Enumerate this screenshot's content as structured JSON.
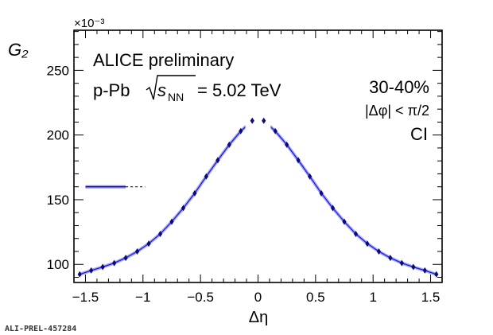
{
  "chart_data": {
    "type": "scatter",
    "title": "",
    "xlabel": "Δη",
    "ylabel": "G₂",
    "y_multiplier": "×10⁻³",
    "xlim": [
      -1.6,
      1.6
    ],
    "ylim": [
      86,
      281
    ],
    "grid": false,
    "xticks": [
      -1.5,
      -1,
      -0.5,
      0,
      0.5,
      1,
      1.5
    ],
    "xtick_labels": [
      "−1.5",
      "−1",
      "−0.5",
      "0",
      "0.5",
      "1",
      "1.5"
    ],
    "yticks": [
      100,
      150,
      200,
      250
    ],
    "ytick_labels": [
      "100",
      "150",
      "200",
      "250"
    ],
    "annotations": {
      "experiment": "ALICE preliminary",
      "system": "p-Pb",
      "sqrt_s_nn": "s",
      "sqrt_s_nn_sub": "NN",
      "energy": "= 5.02 TeV",
      "centrality": "30-40%",
      "dphi_cut": "|Δφ| < π/2",
      "charge_combination": "CI"
    },
    "legend_sample": {
      "x": [
        -1.5,
        -1.15
      ],
      "x_dashed_end": -0.98,
      "y": 160
    },
    "series": [
      {
        "color": "#1a1acc",
        "band_color": "#5a5aff",
        "x": [
          -1.55,
          -1.45,
          -1.35,
          -1.25,
          -1.15,
          -1.05,
          -0.95,
          -0.85,
          -0.75,
          -0.65,
          -0.55,
          -0.45,
          -0.35,
          -0.25,
          -0.15,
          -0.05
        ],
        "y": [
          92.3,
          95.3,
          98.0,
          101.0,
          105.0,
          110.0,
          116.0,
          123.5,
          133.0,
          143.5,
          155.0,
          168.0,
          180.5,
          192.5,
          203.0,
          211.0
        ]
      },
      {
        "color": "#1a1acc",
        "band_color": "#5a5aff",
        "x": [
          0.05,
          0.15,
          0.25,
          0.35,
          0.45,
          0.55,
          0.65,
          0.75,
          0.85,
          0.95,
          1.05,
          1.15,
          1.25,
          1.35,
          1.45,
          1.55
        ],
        "y": [
          211.0,
          203.0,
          192.5,
          180.5,
          168.0,
          155.0,
          143.5,
          133.0,
          123.5,
          116.0,
          110.0,
          105.0,
          101.0,
          98.0,
          95.3,
          92.3
        ]
      }
    ],
    "visible_x_range": [
      -1.55,
      1.55
    ],
    "gap_half_width": 0.11
  },
  "footer": {
    "label": "ALI-PREL-457284"
  }
}
